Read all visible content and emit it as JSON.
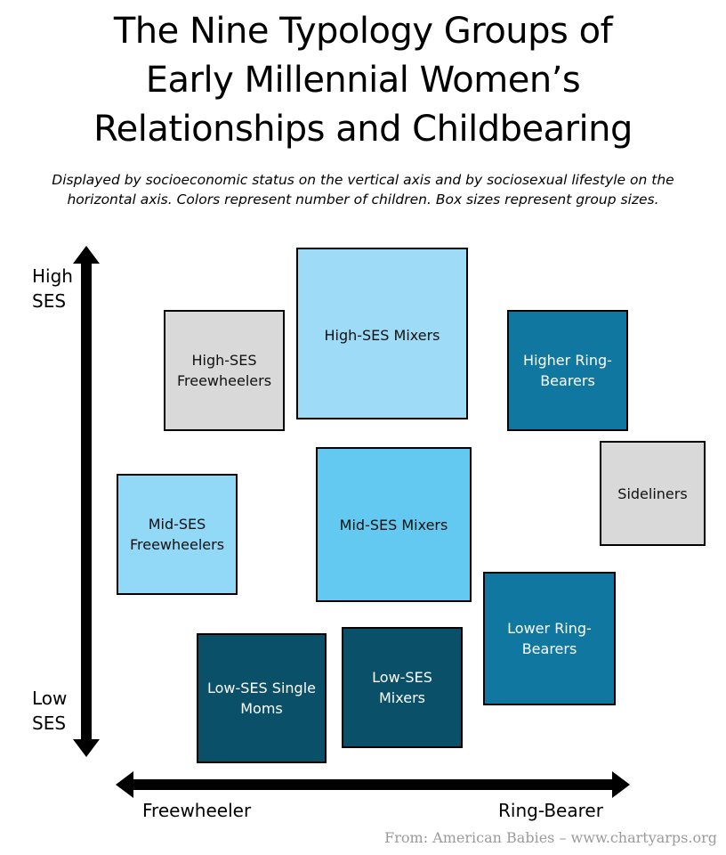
{
  "title": {
    "line1": "The Nine Typology Groups of",
    "line2": "Early Millennial Women’s",
    "line3": "Relationships and Childbearing"
  },
  "subtitle": {
    "line1": "Displayed by socioeconomic status on the vertical axis and by sociosexual lifestyle on the",
    "line2": "horizontal axis. Colors represent number of children. Box sizes represent group sizes."
  },
  "axes": {
    "y_high_line1": "High",
    "y_high_line2": "SES",
    "y_low_line1": "Low",
    "y_low_line2": "SES",
    "x_left": "Freewheeler",
    "x_right": "Ring-Bearer"
  },
  "groups": {
    "high_ses_mixers": {
      "label": "High-SES Mixers",
      "color": "#9ddbf6"
    },
    "high_ses_freewheelers": {
      "line1": "High-SES",
      "line2": "Freewheelers",
      "color": "#d9d9d9"
    },
    "higher_ring_bearers": {
      "line1": "Higher Ring-",
      "line2": "Bearers",
      "color": "#0f77a0"
    },
    "sideliners": {
      "label": "Sideliners",
      "color": "#d9d9d9"
    },
    "mid_ses_freewheelers": {
      "line1": "Mid-SES",
      "line2": "Freewheelers",
      "color": "#92d8f7"
    },
    "mid_ses_mixers": {
      "label": "Mid-SES Mixers",
      "color": "#63c9f1"
    },
    "lower_ring_bearers": {
      "line1": "Lower Ring-",
      "line2": "Bearers",
      "color": "#0f77a0"
    },
    "low_ses_single_moms": {
      "line1": "Low-SES Single",
      "line2": "Moms",
      "color": "#0a5069"
    },
    "low_ses_mixers": {
      "line1": "Low-SES",
      "line2": "Mixers",
      "color": "#0a5069"
    }
  },
  "source": "From: American Babies – www.chartyarps.org"
}
